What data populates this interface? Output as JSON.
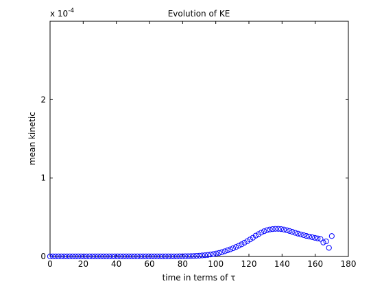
{
  "chart_data": {
    "type": "scatter",
    "title": "Evolution of KE",
    "xlabel": "time in terms of τ",
    "ylabel": "mean kinetic",
    "xlim": [
      0,
      180
    ],
    "ylim": [
      0,
      0.0003
    ],
    "y_multiplier": {
      "base": "x 10",
      "exponent": "-4"
    },
    "xticks": [
      0,
      20,
      40,
      60,
      80,
      100,
      120,
      140,
      160,
      180
    ],
    "yticks": [
      0,
      1,
      2
    ],
    "marker": "circle",
    "marker_color": "#0000ff",
    "grid": false,
    "series": [
      {
        "x": [
          0,
          1.7,
          3.4,
          5.1,
          6.8,
          8.5,
          10.2,
          11.9,
          13.6,
          15.3,
          17,
          18.7,
          20.4,
          22.1,
          23.8,
          25.5,
          27.2,
          28.9,
          30.6,
          32.3,
          34,
          35.7,
          37.4,
          39.1,
          40.8,
          42.5,
          44.2,
          45.9,
          47.6,
          49.3,
          51,
          52.7,
          54.4,
          56.1,
          57.8,
          59.5,
          61.2,
          62.9,
          64.6,
          66.3,
          68,
          69.7,
          71.4,
          73.1,
          74.8,
          76.5,
          78.2,
          79.9,
          81.6,
          83.3,
          85,
          86.7,
          88.4,
          90.1,
          91.8,
          93.5,
          95.2,
          96.9,
          98.6,
          100.3,
          102,
          103.7,
          105.4,
          107.1,
          108.8,
          110.5,
          112.2,
          113.9,
          115.6,
          117.3,
          119,
          120.7,
          122.4,
          124.1,
          125.8,
          127.5,
          129.2,
          130.9,
          132.6,
          134.3,
          136,
          137.7,
          139.4,
          141.1,
          142.8,
          144.5,
          146.2,
          147.9,
          149.6,
          151.3,
          153,
          154.7,
          156.4,
          158.1,
          159.8,
          161.5,
          163.2,
          164.9,
          166.6,
          168.3,
          170
        ],
        "y": [
          1e-07,
          1e-07,
          1e-07,
          1e-07,
          1e-07,
          1e-07,
          1e-07,
          1e-07,
          1e-07,
          1e-07,
          1e-07,
          1e-07,
          1e-07,
          1e-07,
          1e-07,
          1e-07,
          1e-07,
          1e-07,
          1e-07,
          1e-07,
          1e-07,
          1e-07,
          1e-07,
          1e-07,
          1e-07,
          1e-07,
          1e-07,
          1e-07,
          1e-07,
          1e-07,
          1e-07,
          1e-07,
          1e-07,
          1e-07,
          1e-07,
          1e-07,
          1e-07,
          1e-07,
          1e-07,
          1e-07,
          1e-07,
          1e-07,
          1e-07,
          1e-07,
          1e-07,
          1e-07,
          2e-07,
          2e-07,
          3e-07,
          4e-07,
          5e-07,
          6e-07,
          8e-07,
          1e-06,
          1.3e-06,
          1.6e-06,
          2e-06,
          2.5e-06,
          3.1e-06,
          3.7e-06,
          4.5e-06,
          5.5e-06,
          6.6e-06,
          7.8e-06,
          9.1e-06,
          1.05e-05,
          1.2e-05,
          1.37e-05,
          1.55e-05,
          1.75e-05,
          1.95e-05,
          2.17e-05,
          2.39e-05,
          2.65e-05,
          2.85e-05,
          3.05e-05,
          3.22e-05,
          3.35e-05,
          3.44e-05,
          3.49e-05,
          3.52e-05,
          3.52e-05,
          3.49e-05,
          3.43e-05,
          3.35e-05,
          3.25e-05,
          3.14e-05,
          3.02e-05,
          2.91e-05,
          2.81e-05,
          2.72e-05,
          2.62e-05,
          2.54e-05,
          2.46e-05,
          2.38e-05,
          2.3e-05,
          2.23e-05,
          1.78e-05,
          1.93e-05,
          1.1e-05,
          2.6e-05
        ]
      }
    ]
  }
}
